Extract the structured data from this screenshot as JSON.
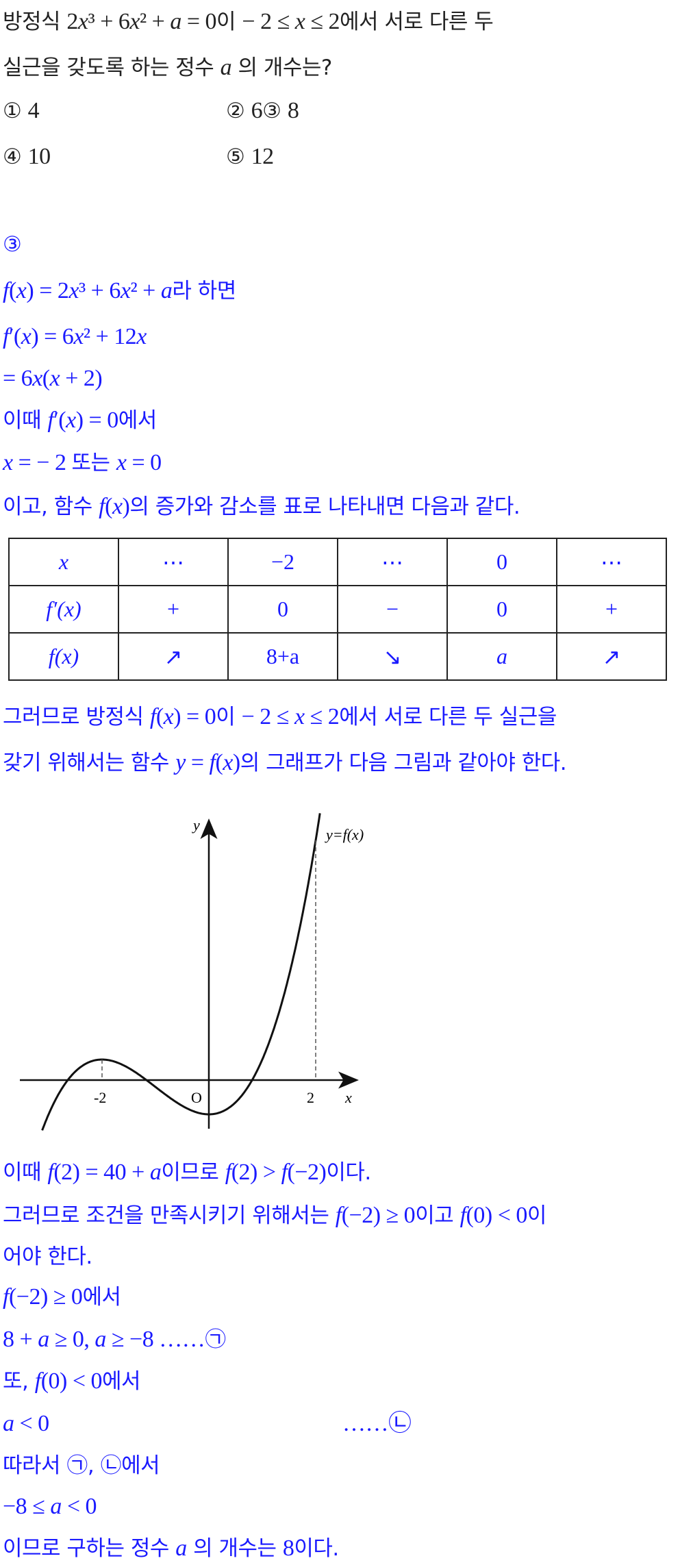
{
  "colors": {
    "question": "#222222",
    "solution": "#1a1aff"
  },
  "question": {
    "lines": [
      [
        [
          "방정식 ",
          "k"
        ],
        [
          "2",
          "m"
        ],
        [
          "x",
          "v"
        ],
        [
          "³ + 6",
          "m"
        ],
        [
          "x",
          "v"
        ],
        [
          "² + ",
          "m"
        ],
        [
          "a",
          "v"
        ],
        [
          " = 0",
          "m"
        ],
        [
          "이 ",
          "k"
        ],
        [
          "− 2 ≤ ",
          "m"
        ],
        [
          "x",
          "v"
        ],
        [
          " ≤ 2",
          "m"
        ],
        [
          "에서 서로 다른 두",
          "k"
        ]
      ],
      [
        [
          "실근을 갖도록 하는 정수 ",
          "k"
        ],
        [
          "a",
          "v"
        ],
        [
          " 의 개수는?",
          "k"
        ]
      ]
    ],
    "choices": [
      [
        [
          [
            "① ",
            "k"
          ],
          [
            "4",
            "m"
          ]
        ],
        [
          [
            "② ",
            "k"
          ],
          [
            "6",
            "m"
          ],
          [
            "③ ",
            "k"
          ],
          [
            "8",
            "m"
          ]
        ]
      ],
      [
        [
          [
            "④ ",
            "k"
          ],
          [
            "10",
            "m"
          ]
        ],
        [
          [
            "⑤ ",
            "k"
          ],
          [
            "12",
            "m"
          ]
        ]
      ]
    ]
  },
  "solution": {
    "lines_before_table": [
      [
        [
          "③",
          "k"
        ]
      ],
      [
        [
          "f",
          "v"
        ],
        [
          "(",
          "m"
        ],
        [
          "x",
          "v"
        ],
        [
          ") = 2",
          "m"
        ],
        [
          "x",
          "v"
        ],
        [
          "³ + 6",
          "m"
        ],
        [
          "x",
          "v"
        ],
        [
          "² + ",
          "m"
        ],
        [
          "a",
          "v"
        ],
        [
          "라 하면",
          "k"
        ]
      ],
      [
        [
          "f",
          "v"
        ],
        [
          "′(",
          "m"
        ],
        [
          "x",
          "v"
        ],
        [
          ") = 6",
          "m"
        ],
        [
          "x",
          "v"
        ],
        [
          "² + 12",
          "m"
        ],
        [
          "x",
          "v"
        ]
      ],
      [
        [
          "= 6",
          "m"
        ],
        [
          "x",
          "v"
        ],
        [
          "(",
          "m"
        ],
        [
          "x",
          "v"
        ],
        [
          " + 2)",
          "m"
        ]
      ],
      [
        [
          "이때 ",
          "k"
        ],
        [
          "f",
          "v"
        ],
        [
          "′(",
          "m"
        ],
        [
          "x",
          "v"
        ],
        [
          ") = 0",
          "m"
        ],
        [
          "에서",
          "k"
        ]
      ],
      [
        [
          "x",
          "v"
        ],
        [
          " = − 2  ",
          "m"
        ],
        [
          "또는 ",
          "k"
        ],
        [
          "x",
          "v"
        ],
        [
          " = 0",
          "m"
        ]
      ],
      [
        [
          "이고, 함수 ",
          "k"
        ],
        [
          "f",
          "v"
        ],
        [
          "(",
          "m"
        ],
        [
          "x",
          "v"
        ],
        [
          ")",
          "m"
        ],
        [
          "의 증가와 감소를 표로 나타내면 다음과 같다.",
          "k"
        ]
      ]
    ],
    "table": [
      [
        [
          "x",
          "v"
        ],
        [
          "⋯",
          "m"
        ],
        [
          "−2",
          "m"
        ],
        [
          "⋯",
          "m"
        ],
        [
          "0",
          "m"
        ],
        [
          "⋯",
          "m"
        ]
      ],
      [
        [
          "f′(x)",
          "v"
        ],
        [
          "+",
          "m"
        ],
        [
          "0",
          "m"
        ],
        [
          "−",
          "m"
        ],
        [
          "0",
          "m"
        ],
        [
          "+",
          "m"
        ]
      ],
      [
        [
          "f(x)",
          "v"
        ],
        [
          "↗",
          "m"
        ],
        [
          "8+a",
          "m"
        ],
        [
          "↘",
          "m"
        ],
        [
          "a",
          "v"
        ],
        [
          "↗",
          "m"
        ]
      ]
    ],
    "lines_before_graph": [
      [
        [
          "그러므로 방정식 ",
          "k"
        ],
        [
          "f",
          "v"
        ],
        [
          "(",
          "m"
        ],
        [
          "x",
          "v"
        ],
        [
          ") = 0",
          "m"
        ],
        [
          "이 ",
          "k"
        ],
        [
          "− 2 ≤ ",
          "m"
        ],
        [
          "x",
          "v"
        ],
        [
          " ≤ 2",
          "m"
        ],
        [
          "에서 서로 다른 두 실근을",
          "k"
        ]
      ],
      [
        [
          "갖기 위해서는 함수 ",
          "k"
        ],
        [
          "y",
          "v"
        ],
        [
          " = ",
          "m"
        ],
        [
          "f",
          "v"
        ],
        [
          "(",
          "m"
        ],
        [
          "x",
          "v"
        ],
        [
          ")",
          "m"
        ],
        [
          "의 그래프가 다음 그림과 같아야 한다.",
          "k"
        ]
      ]
    ],
    "graph": {
      "y_label": "y",
      "x_label": "x",
      "curve_label": "y=f(x)",
      "ticks": [
        "-2",
        "O",
        "2"
      ]
    },
    "lines_after_graph": [
      [
        [
          "이때 ",
          "k"
        ],
        [
          "f",
          "v"
        ],
        [
          "(2) = 40 + ",
          "m"
        ],
        [
          "a",
          "v"
        ],
        [
          "이므로 ",
          "k"
        ],
        [
          "f",
          "v"
        ],
        [
          "(2) > ",
          "m"
        ],
        [
          "f",
          "v"
        ],
        [
          "(−2)",
          "m"
        ],
        [
          "이다.",
          "k"
        ]
      ],
      [
        [
          "그러므로 조건을 만족시키기 위해서는 ",
          "k"
        ],
        [
          "f",
          "v"
        ],
        [
          "(−2) ≥ 0",
          "m"
        ],
        [
          "이고 ",
          "k"
        ],
        [
          "f",
          "v"
        ],
        [
          "(0) < 0",
          "m"
        ],
        [
          "이",
          "k"
        ]
      ],
      [
        [
          "어야 한다.",
          "k"
        ]
      ],
      [
        [
          "f",
          "v"
        ],
        [
          "(−2) ≥ 0",
          "m"
        ],
        [
          "에서",
          "k"
        ]
      ],
      [
        [
          "8 + ",
          "m"
        ],
        [
          "a",
          "v"
        ],
        [
          " ≥ 0,  ",
          "m"
        ],
        [
          "a",
          "v"
        ],
        [
          " ≥ −8   ……",
          "m"
        ],
        [
          "㉠",
          "k"
        ]
      ],
      [
        [
          "또, ",
          "k"
        ],
        [
          "f",
          "v"
        ],
        [
          "(0) < 0",
          "m"
        ],
        [
          "에서",
          "k"
        ]
      ],
      [
        [
          "a",
          "v"
        ],
        [
          " < 0",
          "m"
        ]
      ],
      [
        [
          "따라서 ㉠, ㉡에서",
          "k"
        ]
      ],
      [
        [
          "−8 ≤ ",
          "m"
        ],
        [
          "a",
          "v"
        ],
        [
          " < 0",
          "m"
        ]
      ],
      [
        [
          "이므로 구하는 정수 ",
          "k"
        ],
        [
          "a",
          "v"
        ],
        [
          " 의 개수는 ",
          "k"
        ],
        [
          "8",
          "m"
        ],
        [
          "이다.",
          "k"
        ]
      ]
    ],
    "marker_b": "……㉡"
  }
}
